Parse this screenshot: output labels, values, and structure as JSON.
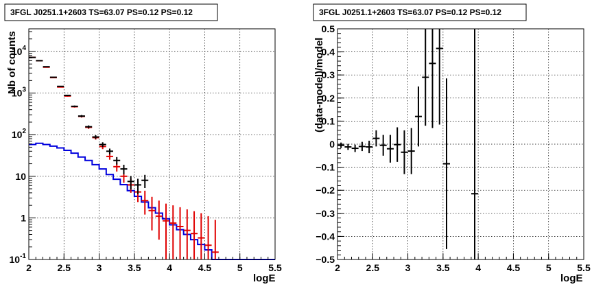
{
  "chart_data": [
    {
      "type": "line",
      "title": "3FGL J0251.1+2603 TS=63.07 PS=0.12 PS=0.12",
      "xlabel": "logE",
      "ylabel": "Nb of counts",
      "xlim": [
        2,
        5.5
      ],
      "ylim": [
        0.1,
        35000
      ],
      "ylog": true,
      "grid": true,
      "xticks": [
        "2",
        "2.5",
        "3",
        "3.5",
        "4",
        "4.5",
        "5",
        "5.5"
      ],
      "yticks": [
        {
          "value": 0.1,
          "base": "10",
          "exp": "-1"
        },
        {
          "value": 1,
          "base": "1",
          "exp": ""
        },
        {
          "value": 10,
          "base": "10",
          "exp": ""
        },
        {
          "value": 100,
          "base": "10",
          "exp": "2"
        },
        {
          "value": 1000,
          "base": "10",
          "exp": "3"
        },
        {
          "value": 10000,
          "base": "10",
          "exp": "4"
        }
      ],
      "series": [
        {
          "kind": "points",
          "color": "#000000",
          "x": [
            2.05,
            2.15,
            2.25,
            2.35,
            2.45,
            2.55,
            2.65,
            2.75,
            2.85,
            2.95,
            3.05,
            3.15,
            3.25,
            3.35,
            3.45,
            3.55,
            3.65
          ],
          "y": [
            7200,
            6000,
            4300,
            2400,
            1450,
            880,
            480,
            280,
            155,
            88,
            58,
            40,
            24,
            15,
            7.5,
            6.2,
            8
          ],
          "yerr": [
            85,
            77,
            66,
            49,
            38,
            30,
            22,
            17,
            12,
            9,
            7.6,
            6.3,
            4.9,
            3.9,
            2.7,
            2.5,
            2.8
          ]
        },
        {
          "kind": "points",
          "color": "#e00000",
          "x": [
            2.05,
            2.15,
            2.25,
            2.35,
            2.45,
            2.55,
            2.65,
            2.75,
            2.85,
            2.95,
            3.05,
            3.15,
            3.25,
            3.35,
            3.45,
            3.55,
            3.65,
            3.75,
            3.85,
            3.95,
            4.05,
            4.15,
            4.25,
            4.35,
            4.45,
            4.55,
            4.65
          ],
          "y": [
            7200,
            6000,
            4200,
            2350,
            1400,
            850,
            470,
            275,
            150,
            85,
            52,
            30,
            17,
            10,
            6.2,
            4.2,
            2.6,
            1.5,
            1.1,
            0.85,
            0.75,
            0.62,
            0.5,
            0.42,
            0.33,
            0.22,
            0.15
          ],
          "ylo": [
            7100,
            5920,
            4135,
            2300,
            1360,
            820,
            448,
            258,
            138,
            76,
            45,
            25,
            13,
            7,
            4,
            2.4,
            1.2,
            0.5,
            0.3,
            0.1,
            0.1,
            0.1,
            0.1,
            0.1,
            0.1,
            0.1,
            0.1
          ],
          "yhi": [
            7300,
            6080,
            4265,
            2400,
            1440,
            880,
            492,
            292,
            162,
            94,
            59,
            36,
            21,
            13,
            8.8,
            6.5,
            4.5,
            3.2,
            2.6,
            2.2,
            2,
            1.8,
            1.6,
            1.45,
            1.3,
            1.1,
            0.9
          ]
        },
        {
          "kind": "step",
          "color": "#0000dd",
          "edges": [
            2.0,
            2.1,
            2.2,
            2.3,
            2.4,
            2.5,
            2.6,
            2.7,
            2.8,
            2.9,
            3.0,
            3.1,
            3.2,
            3.3,
            3.4,
            3.5,
            3.6,
            3.7,
            3.8,
            3.9,
            4.0,
            4.1,
            4.2,
            4.3,
            4.4,
            4.5,
            4.6,
            4.7,
            4.8,
            4.9,
            5.0,
            5.1,
            5.2,
            5.3,
            5.4,
            5.5
          ],
          "values": [
            58,
            62,
            58,
            53,
            48,
            42,
            36,
            29,
            24,
            19,
            15,
            11,
            8.5,
            6.3,
            4.5,
            3.3,
            2.4,
            1.75,
            1.3,
            0.95,
            0.68,
            0.52,
            0.4,
            0.3,
            0.23,
            0.17,
            0.1,
            0.1,
            0.1,
            0.1,
            0.1,
            0.1,
            0.1,
            0.1,
            0.1
          ]
        }
      ]
    },
    {
      "type": "scatter",
      "title": "3FGL J0251.1+2603 TS=63.07 PS=0.12 PS=0.12",
      "xlabel": "logE",
      "ylabel": "(data-model)/model",
      "xlim": [
        2,
        5.5
      ],
      "ylim": [
        -0.5,
        0.5
      ],
      "grid": true,
      "xticks": [
        "2",
        "2.5",
        "3",
        "3.5",
        "4",
        "4.5",
        "5",
        "5.5"
      ],
      "yticks": [
        "−0.5",
        "−0.4",
        "−0.3",
        "−0.2",
        "−0.1",
        "0",
        "0.1",
        "0.2",
        "0.3",
        "0.4",
        "0.5"
      ],
      "yticks_values": [
        -0.5,
        -0.4,
        -0.3,
        -0.2,
        -0.1,
        0,
        0.1,
        0.2,
        0.3,
        0.4,
        0.5
      ],
      "series": [
        {
          "kind": "points",
          "color": "#000000",
          "x": [
            2.05,
            2.15,
            2.25,
            2.35,
            2.45,
            2.55,
            2.65,
            2.75,
            2.85,
            2.95,
            3.05,
            3.15,
            3.25,
            3.35,
            3.45,
            3.55,
            3.95
          ],
          "y": [
            -0.005,
            -0.012,
            -0.018,
            -0.01,
            -0.012,
            0.025,
            -0.005,
            -0.02,
            -0.002,
            -0.035,
            -0.03,
            0.12,
            0.29,
            0.35,
            0.415,
            -0.085,
            -0.215
          ],
          "yerr": [
            0.012,
            0.013,
            0.016,
            0.02,
            0.027,
            0.035,
            0.045,
            0.06,
            0.075,
            0.095,
            0.1,
            0.13,
            0.21,
            0.28,
            0.33,
            0.37,
            0.75
          ]
        }
      ]
    }
  ]
}
